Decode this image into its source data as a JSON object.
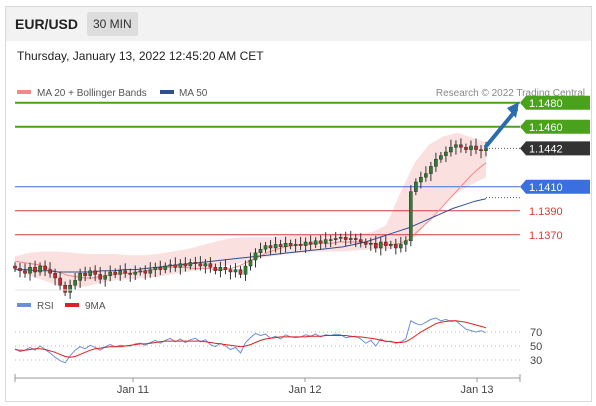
{
  "header": {
    "symbol": "EUR/USD",
    "timeframe": "30 MIN"
  },
  "datetime": "Thursday, January 13, 2022 12:45:20 AM CET",
  "legend": [
    {
      "label": "MA 20 + Bollinger Bands",
      "color": "#f08a8a"
    },
    {
      "label": "MA 50",
      "color": "#2f4f8f"
    }
  ],
  "credit": "Research © 2022 Trading Central",
  "rsi_legend": [
    {
      "label": "RSI",
      "color": "#6b8fd6"
    },
    {
      "label": "9MA",
      "color": "#e02020"
    }
  ],
  "colors": {
    "green": "#4aa21b",
    "blue": "#3b6fe0",
    "red": "#d63a3a",
    "current": "#333333",
    "arrow": "#2b6cb0"
  },
  "chart_data": {
    "type": "candlestick",
    "x_ticks": [
      "Jan 11",
      "Jan 12",
      "Jan 13"
    ],
    "levels": [
      {
        "value": 1.148,
        "label": "1.1480",
        "kind": "resistance"
      },
      {
        "value": 1.146,
        "label": "1.1460",
        "kind": "resistance"
      },
      {
        "value": 1.1442,
        "label": "1.1442",
        "kind": "current"
      },
      {
        "value": 1.141,
        "label": "1.1410",
        "kind": "pivot"
      },
      {
        "value": 1.139,
        "label": "1.1390",
        "kind": "support"
      },
      {
        "value": 1.137,
        "label": "1.1370",
        "kind": "support"
      }
    ],
    "ylim": [
      1.1324,
      1.1484
    ],
    "close": [
      1.1342,
      1.134,
      1.1338,
      1.1343,
      1.1339,
      1.1344,
      1.1341,
      1.1338,
      1.1334,
      1.1328,
      1.1322,
      1.1328,
      1.1332,
      1.1338,
      1.1336,
      1.134,
      1.1337,
      1.1333,
      1.1336,
      1.1339,
      1.1337,
      1.134,
      1.1338,
      1.1337,
      1.1339,
      1.134,
      1.1338,
      1.1341,
      1.1343,
      1.1341,
      1.1344,
      1.1345,
      1.1343,
      1.1346,
      1.1344,
      1.1347,
      1.1346,
      1.1344,
      1.1346,
      1.1343,
      1.134,
      1.1343,
      1.1341,
      1.1339,
      1.1341,
      1.1337,
      1.1344,
      1.1349,
      1.1355,
      1.1358,
      1.1361,
      1.1359,
      1.1362,
      1.136,
      1.1363,
      1.1361,
      1.1362,
      1.1361,
      1.1364,
      1.1362,
      1.1365,
      1.1363,
      1.1366,
      1.1366,
      1.1367,
      1.1368,
      1.1366,
      1.1367,
      1.1366,
      1.1364,
      1.1362,
      1.1363,
      1.1359,
      1.1364,
      1.1361,
      1.1362,
      1.1359,
      1.1362,
      1.1365,
      1.1406,
      1.1414,
      1.1418,
      1.1421,
      1.1427,
      1.1433,
      1.1436,
      1.1439,
      1.1443,
      1.1445,
      1.1443,
      1.1441,
      1.1444,
      1.1441,
      1.144,
      1.1442
    ],
    "ma20": [
      1.1348,
      1.1347,
      1.1346,
      1.1345,
      1.1343,
      1.134,
      1.1338,
      1.1336,
      1.1335,
      1.1334,
      1.1334,
      1.1335,
      1.1336,
      1.1337,
      1.1338,
      1.1338,
      1.1339,
      1.134,
      1.1341,
      1.1342,
      1.1343,
      1.1343,
      1.1343,
      1.1342,
      1.1342,
      1.1342,
      1.1341,
      1.1341,
      1.1342,
      1.1344,
      1.1347,
      1.135,
      1.1353,
      1.1356,
      1.1358,
      1.136,
      1.1361,
      1.1362,
      1.1362,
      1.1363,
      1.1363,
      1.1363,
      1.1364,
      1.1364,
      1.1364,
      1.1364,
      1.1363,
      1.1362,
      1.1362,
      1.1362,
      1.1363,
      1.1366,
      1.1372,
      1.1378,
      1.1384,
      1.1391,
      1.1398,
      1.1405,
      1.1412,
      1.1419,
      1.1425,
      1.143
    ],
    "ma50": [
      1.1341,
      1.1341,
      1.134,
      1.134,
      1.1339,
      1.1339,
      1.1339,
      1.1339,
      1.134,
      1.134,
      1.1341,
      1.1341,
      1.1342,
      1.1343,
      1.1344,
      1.1345,
      1.1346,
      1.1347,
      1.1348,
      1.1349,
      1.135,
      1.1351,
      1.1352,
      1.1353,
      1.1354,
      1.1355,
      1.1356,
      1.1357,
      1.1358,
      1.1359,
      1.136,
      1.1362,
      1.1364,
      1.1367,
      1.137,
      1.1373,
      1.1376,
      1.138,
      1.1384,
      1.1388,
      1.1392,
      1.1395,
      1.1398,
      1.14
    ],
    "bb_upper": [
      1.1352,
      1.1355,
      1.1356,
      1.1356,
      1.1355,
      1.1354,
      1.1354,
      1.1354,
      1.1353,
      1.1353,
      1.1354,
      1.1356,
      1.1358,
      1.1361,
      1.1364,
      1.1367,
      1.1368,
      1.1368,
      1.1368,
      1.1369,
      1.137,
      1.137,
      1.1371,
      1.1371,
      1.1371,
      1.1372,
      1.1378,
      1.1405,
      1.143,
      1.1445,
      1.1452,
      1.1455,
      1.1451,
      1.1447
    ],
    "bb_lower": [
      1.1342,
      1.1336,
      1.1332,
      1.1328,
      1.1326,
      1.1327,
      1.133,
      1.1332,
      1.1333,
      1.1334,
      1.1335,
      1.1337,
      1.1339,
      1.1341,
      1.1343,
      1.1345,
      1.1347,
      1.135,
      1.1352,
      1.1354,
      1.1355,
      1.1356,
      1.1356,
      1.1356,
      1.1357,
      1.1358,
      1.1358,
      1.136,
      1.1368,
      1.1382,
      1.1395,
      1.1405,
      1.1412,
      1.1418
    ],
    "rsi": {
      "ylim": [
        10,
        90
      ],
      "ticks": [
        70,
        50,
        30
      ],
      "rsi": [
        46,
        42,
        44,
        48,
        44,
        50,
        45,
        40,
        34,
        29,
        26,
        36,
        44,
        49,
        46,
        51,
        48,
        44,
        49,
        52,
        49,
        51,
        50,
        50,
        53,
        54,
        51,
        55,
        58,
        54,
        58,
        61,
        56,
        60,
        55,
        59,
        61,
        56,
        59,
        52,
        49,
        54,
        50,
        45,
        48,
        40,
        55,
        62,
        68,
        65,
        67,
        61,
        64,
        60,
        66,
        63,
        62,
        63,
        66,
        64,
        67,
        63,
        66,
        65,
        67,
        66,
        62,
        63,
        64,
        60,
        54,
        58,
        50,
        60,
        56,
        57,
        54,
        56,
        60,
        86,
        82,
        80,
        84,
        88,
        90,
        86,
        88,
        85,
        86,
        80,
        74,
        72,
        70,
        72,
        69
      ],
      "ma9": [
        45,
        44,
        44,
        45,
        46,
        46,
        45,
        43,
        41,
        38,
        35,
        34,
        35,
        38,
        41,
        44,
        46,
        47,
        48,
        49,
        49,
        49,
        50,
        51,
        52,
        53,
        53,
        54,
        55,
        56,
        57,
        57,
        57,
        57,
        57,
        57,
        57,
        57,
        56,
        55,
        54,
        53,
        52,
        51,
        50,
        49,
        50,
        52,
        55,
        58,
        60,
        61,
        62,
        63,
        63,
        63,
        63,
        63,
        63,
        64,
        64,
        64,
        65,
        65,
        65,
        65,
        65,
        64,
        63,
        63,
        62,
        61,
        60,
        58,
        57,
        56,
        55,
        55,
        56,
        60,
        65,
        70,
        74,
        78,
        82,
        84,
        85,
        86,
        86,
        85,
        84,
        82,
        80,
        78,
        76
      ]
    }
  }
}
